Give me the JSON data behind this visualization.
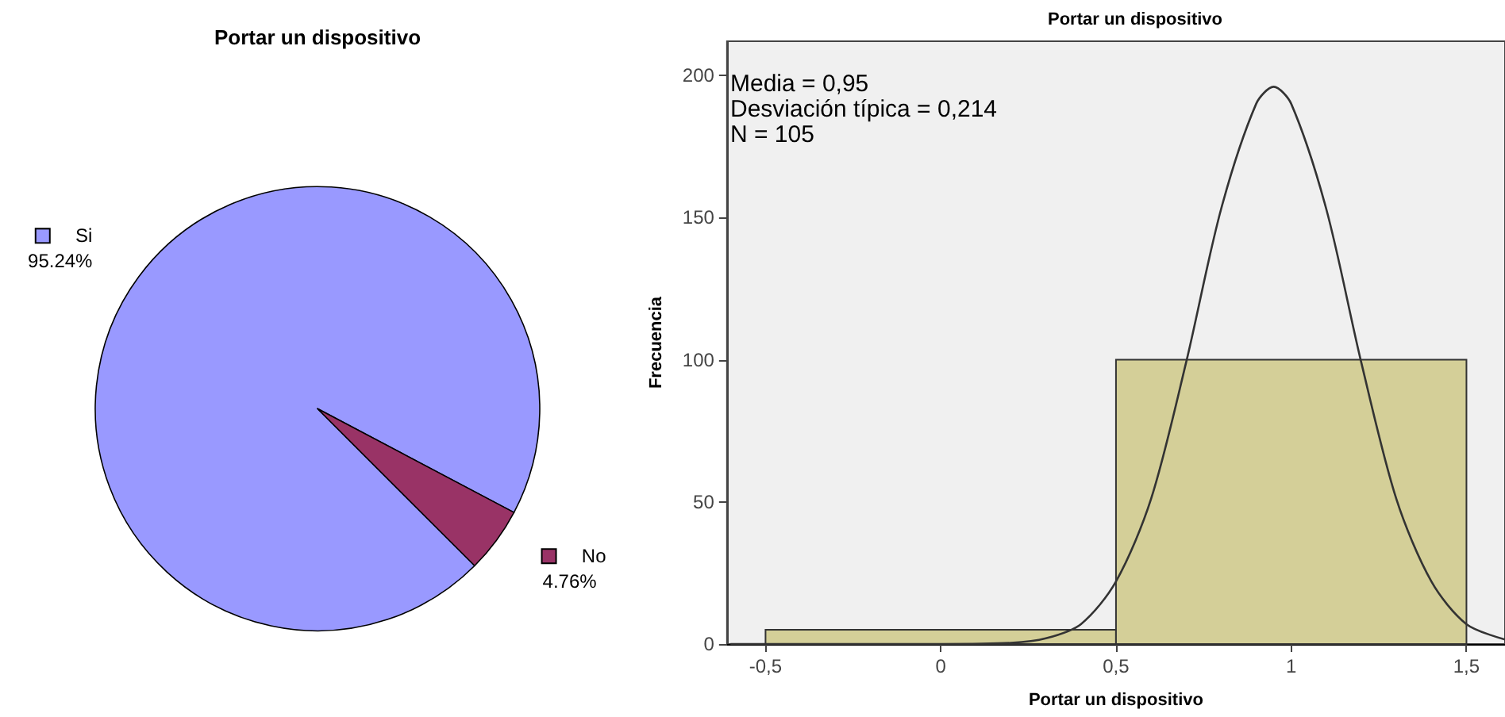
{
  "chart_data": [
    {
      "type": "pie",
      "title": "Portar un dispositivo",
      "categories": [
        "Si",
        "No"
      ],
      "values": [
        95.24,
        4.76
      ],
      "colors": [
        "#9999ff",
        "#993366"
      ],
      "value_labels": [
        "95.24%",
        "4.76%"
      ],
      "legend": "left"
    },
    {
      "type": "histogram",
      "title": "Portar un dispositivo",
      "xlabel": "Portar un dispositivo",
      "ylabel": "Frecuencia",
      "xlim": [
        -0.61,
        1.61
      ],
      "ylim": [
        0,
        212
      ],
      "xticks": [
        {
          "value": -0.5,
          "label": "-0,5"
        },
        0,
        {
          "value": 0.5,
          "label": "0,5"
        },
        1,
        {
          "value": 1.5,
          "label": "1,5"
        }
      ],
      "yticks": [
        0,
        50,
        100,
        150,
        200
      ],
      "grid": false,
      "annotations": [
        "Media = 0,95",
        "Desviación típica = 0,214",
        "N = 105"
      ],
      "series": [
        {
          "type": "histogram",
          "color": "#d4cf98",
          "bins": [
            -0.5,
            0.5,
            1.5
          ],
          "values": [
            5,
            100
          ]
        },
        {
          "type": "line",
          "color": "#333333",
          "marker": "none",
          "x": [
            -0.6,
            0.0,
            0.2,
            0.3,
            0.4,
            0.5,
            0.6,
            0.7,
            0.8,
            0.9,
            0.95,
            1.0,
            1.1,
            1.2,
            1.3,
            1.4,
            1.5,
            1.61
          ],
          "values": [
            0,
            0,
            0.4,
            2,
            7,
            22,
            51,
            99,
            153,
            190,
            196,
            190,
            153,
            99,
            51,
            22,
            7,
            1.6
          ]
        }
      ]
    }
  ]
}
